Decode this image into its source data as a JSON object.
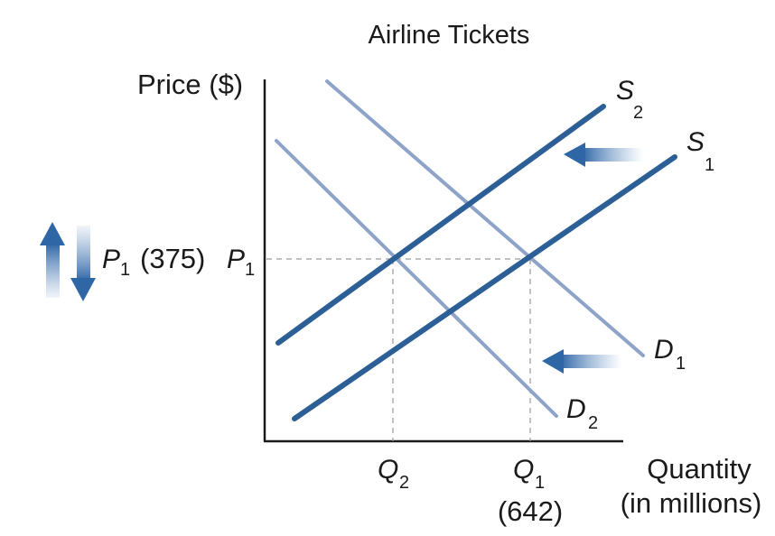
{
  "title": "Airline Tickets",
  "y_axis_label": "Price ($)",
  "x_axis_label_line1": "Quantity",
  "x_axis_label_line2": "(in millions)",
  "price_label": {
    "left_letter": "P",
    "left_sub": "1",
    "value": "(375)",
    "axis_letter": "P",
    "axis_sub": "1"
  },
  "quantity_labels": {
    "q2_letter": "Q",
    "q2_sub": "2",
    "q1_letter": "Q",
    "q1_sub": "1",
    "q1_value": "(642)"
  },
  "curves": {
    "s2_letter": "S",
    "s2_sub": "2",
    "s1_letter": "S",
    "s1_sub": "1",
    "d1_letter": "D",
    "d1_sub": "1",
    "d2_letter": "D",
    "d2_sub": "2"
  },
  "colors": {
    "supply": "#2b5f96",
    "demand": "#8ea3c8",
    "arrow": "#3a6ca8",
    "axis": "#1a1a1a",
    "dashed": "#9a9a9a"
  }
}
